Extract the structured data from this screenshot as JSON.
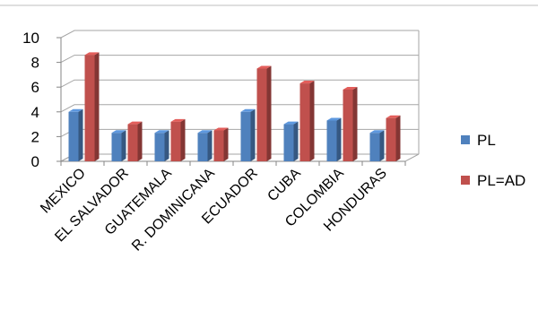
{
  "chart_data": {
    "type": "bar",
    "style": "3d-clustered-column",
    "categories": [
      "MEXICO",
      "EL SALVADOR",
      "GUATEMALA",
      "R. DOMINICANA",
      "ECUADOR",
      "CUBA",
      "COLOMBIA",
      "HONDURAS"
    ],
    "series": [
      {
        "name": "PL",
        "values": [
          4,
          2.3,
          2.3,
          2.3,
          4,
          3,
          3.3,
          2.3
        ],
        "color": "#4f81bd"
      },
      {
        "name": "PL=AD",
        "values": [
          8.6,
          3,
          3.2,
          2.5,
          7.5,
          6.3,
          5.8,
          3.5
        ],
        "color": "#c0504d"
      }
    ],
    "y_ticks": [
      "0",
      "2",
      "4",
      "6",
      "8",
      "10"
    ],
    "ylim": [
      0,
      10
    ],
    "grid": true,
    "legend_position": "right"
  }
}
